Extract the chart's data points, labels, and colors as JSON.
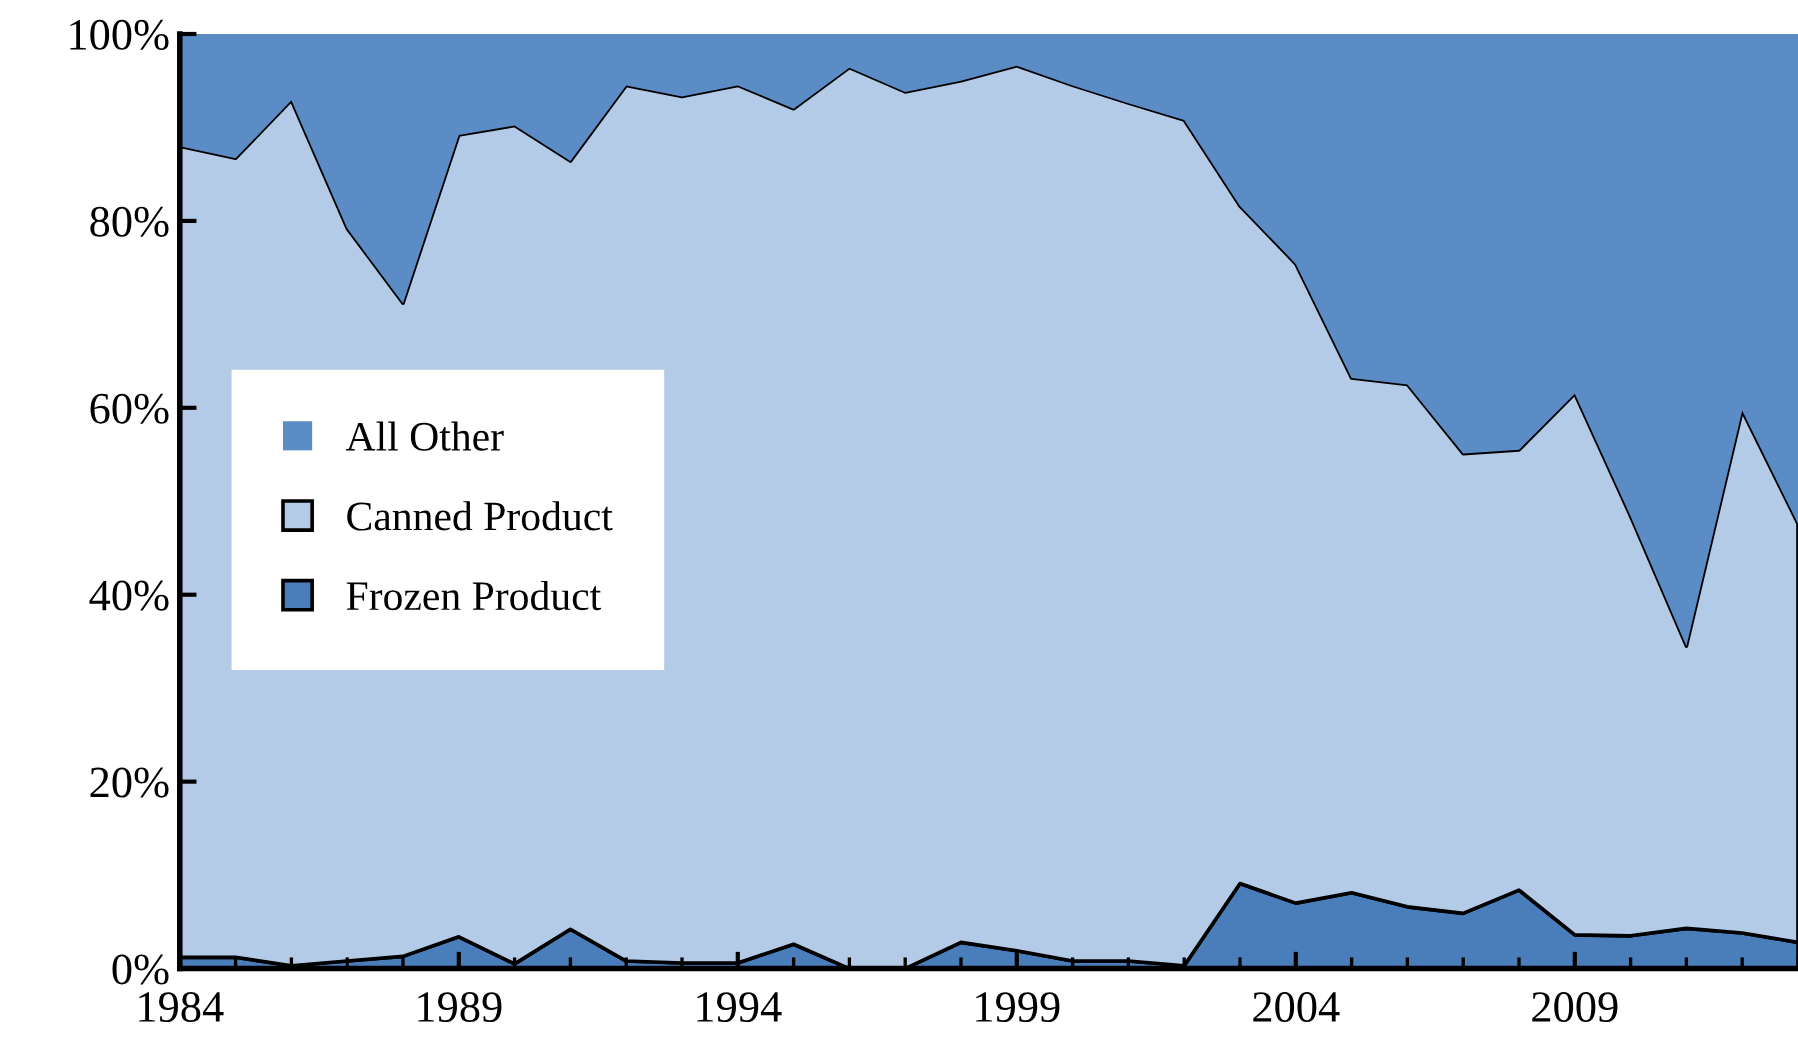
{
  "chart_data": {
    "type": "area",
    "stacked": true,
    "x": [
      1984,
      1985,
      1986,
      1987,
      1988,
      1989,
      1990,
      1991,
      1992,
      1993,
      1994,
      1995,
      1996,
      1997,
      1998,
      1999,
      2000,
      2001,
      2002,
      2003,
      2004,
      2005,
      2006,
      2007,
      2008,
      2009,
      2010,
      2011,
      2012,
      2013
    ],
    "series": [
      {
        "name": "Frozen Product",
        "color": "#4a7ebb",
        "values": [
          1.2,
          1.2,
          0.3,
          0.8,
          1.3,
          3.4,
          0.5,
          4.2,
          0.8,
          0.6,
          0.6,
          2.6,
          0,
          0,
          2.8,
          1.9,
          0.8,
          0.8,
          0.3,
          9.1,
          7.0,
          8.1,
          6.6,
          5.9,
          8.4,
          3.6,
          3.5,
          4.3,
          3.8,
          2.8
        ]
      },
      {
        "name": "Canned Product",
        "color": "#b4cbe8",
        "values": [
          86.8,
          85.5,
          92.6,
          78.4,
          69.9,
          85.8,
          89.7,
          82.2,
          93.7,
          92.7,
          93.9,
          89.4,
          96.4,
          93.8,
          92.2,
          94.7,
          93.7,
          91.8,
          90.5,
          72.5,
          68.4,
          55.1,
          55.9,
          49.2,
          47.1,
          57.9,
          44.9,
          30.2,
          55.9,
          44.8
        ]
      },
      {
        "name": "All Other",
        "color": "#5b8cc6",
        "values": [
          12,
          13.3,
          7.1,
          20.8,
          28.8,
          10.8,
          9.8,
          13.6,
          5.5,
          6.7,
          5.5,
          8,
          3.6,
          6.2,
          5,
          3.4,
          5.5,
          7.4,
          9.2,
          18.4,
          24.6,
          36.8,
          37.5,
          44.9,
          44.5,
          38.5,
          51.6,
          65.5,
          40.3,
          52.4
        ]
      }
    ],
    "xlim": [
      1984,
      2013
    ],
    "xticks": [
      1984,
      1989,
      1994,
      1999,
      2004,
      2009
    ],
    "ylim": [
      0,
      100
    ],
    "yticks": [
      {
        "value": 0,
        "label": "0%"
      },
      {
        "value": 20,
        "label": "20%"
      },
      {
        "value": 40,
        "label": "40%"
      },
      {
        "value": 60,
        "label": "60%"
      },
      {
        "value": 80,
        "label": "80%"
      },
      {
        "value": 100,
        "label": "100%"
      }
    ],
    "legend": "left",
    "grid": false
  }
}
